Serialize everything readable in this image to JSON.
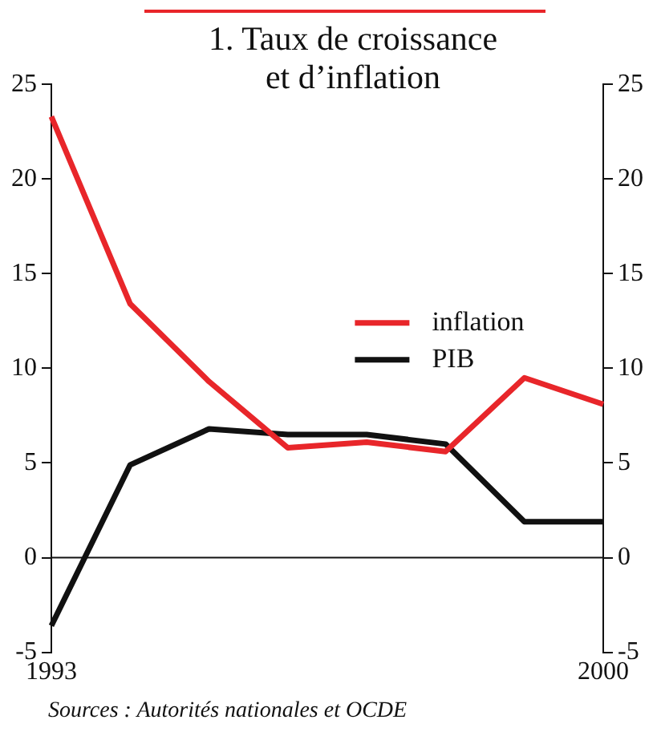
{
  "chart_data": {
    "type": "line",
    "title": "1. Taux de croissance et d’inflation",
    "categories": [
      "1993",
      null,
      null,
      null,
      null,
      null,
      null,
      "2000"
    ],
    "series": [
      {
        "name": "inflation",
        "color": "#e8262a",
        "values": [
          23.3,
          13.4,
          9.3,
          5.8,
          6.1,
          5.6,
          9.5,
          8.1
        ]
      },
      {
        "name": "PIB",
        "color": "#111111",
        "values": [
          -3.6,
          4.9,
          6.8,
          6.5,
          6.5,
          6.0,
          1.9,
          1.9
        ]
      }
    ],
    "ylim": [
      -5,
      25
    ],
    "yticks": [
      -5,
      0,
      5,
      10,
      15,
      20,
      25
    ],
    "y2lim": [
      -5,
      25
    ],
    "y2ticks": [
      -5,
      0,
      5,
      10,
      15,
      20,
      25
    ],
    "ref_lines": [
      {
        "axis": "y",
        "value": 0,
        "color": "#111111"
      }
    ],
    "grid": false,
    "legend": "right",
    "marker": "none",
    "line_style": "solid",
    "annotations": [
      "Sources : Autorités nationales et OCDE"
    ]
  }
}
